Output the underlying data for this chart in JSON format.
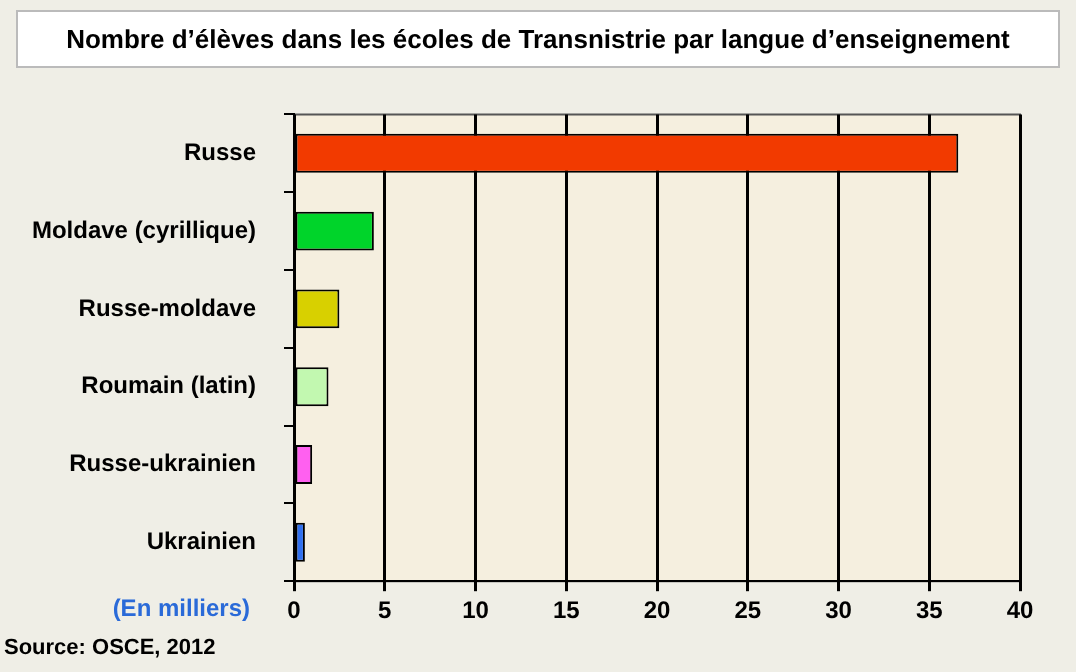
{
  "chart_data": {
    "type": "bar",
    "orientation": "horizontal",
    "title": "Nombre d’élèves dans les écoles de Transnistrie par langue d’enseignement",
    "xlabel": "(En milliers)",
    "categories": [
      "Russe",
      "Moldave (cyrillique)",
      "Russe-moldave",
      "Roumain (latin)",
      "Russe-ukrainien",
      "Ukrainien"
    ],
    "values": [
      36.6,
      4.4,
      2.5,
      1.9,
      1.0,
      0.6
    ],
    "colors": [
      "#f23a00",
      "#00d42a",
      "#d8d000",
      "#c2f8b0",
      "#ff60f0",
      "#3070f0"
    ],
    "xlim": [
      0,
      40
    ],
    "xticks": [
      0,
      5,
      10,
      15,
      20,
      25,
      30,
      35,
      40
    ],
    "grid": "x",
    "annotations": [
      "Source: OSCE, 2012"
    ]
  }
}
